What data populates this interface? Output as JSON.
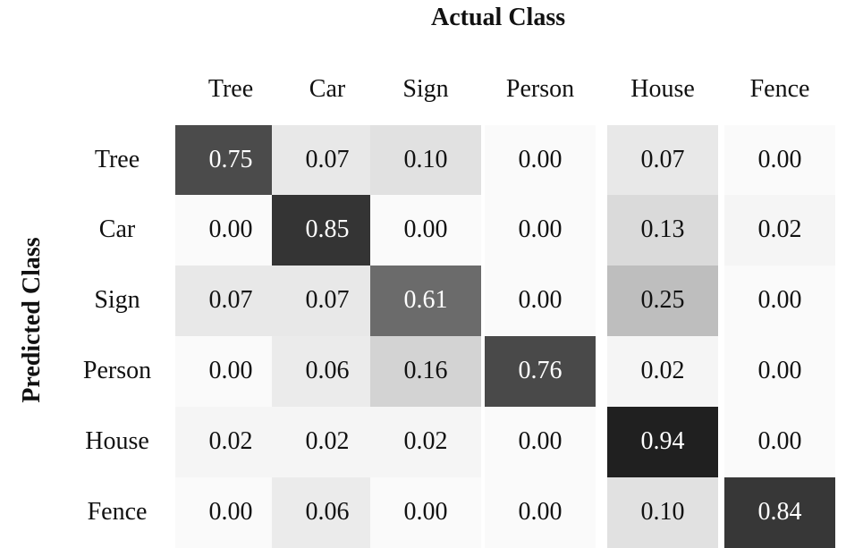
{
  "chart_data": {
    "type": "heatmap",
    "xlabel": "Actual Class",
    "ylabel": "Predicted Class",
    "columns": [
      "Tree",
      "Car",
      "Sign",
      "Person",
      "House",
      "Fence"
    ],
    "rows": [
      "Tree",
      "Car",
      "Sign",
      "Person",
      "House",
      "Fence"
    ],
    "values": [
      [
        0.75,
        0.07,
        0.1,
        0.0,
        0.07,
        0.0
      ],
      [
        0.0,
        0.85,
        0.0,
        0.0,
        0.13,
        0.02
      ],
      [
        0.07,
        0.07,
        0.61,
        0.0,
        0.25,
        0.0
      ],
      [
        0.0,
        0.06,
        0.16,
        0.76,
        0.02,
        0.0
      ],
      [
        0.02,
        0.02,
        0.02,
        0.0,
        0.94,
        0.0
      ],
      [
        0.0,
        0.06,
        0.0,
        0.0,
        0.1,
        0.84
      ]
    ],
    "value_format": "2-decimals",
    "colormap": "greys",
    "color_min": "#ffffff",
    "color_max": "#000000"
  }
}
